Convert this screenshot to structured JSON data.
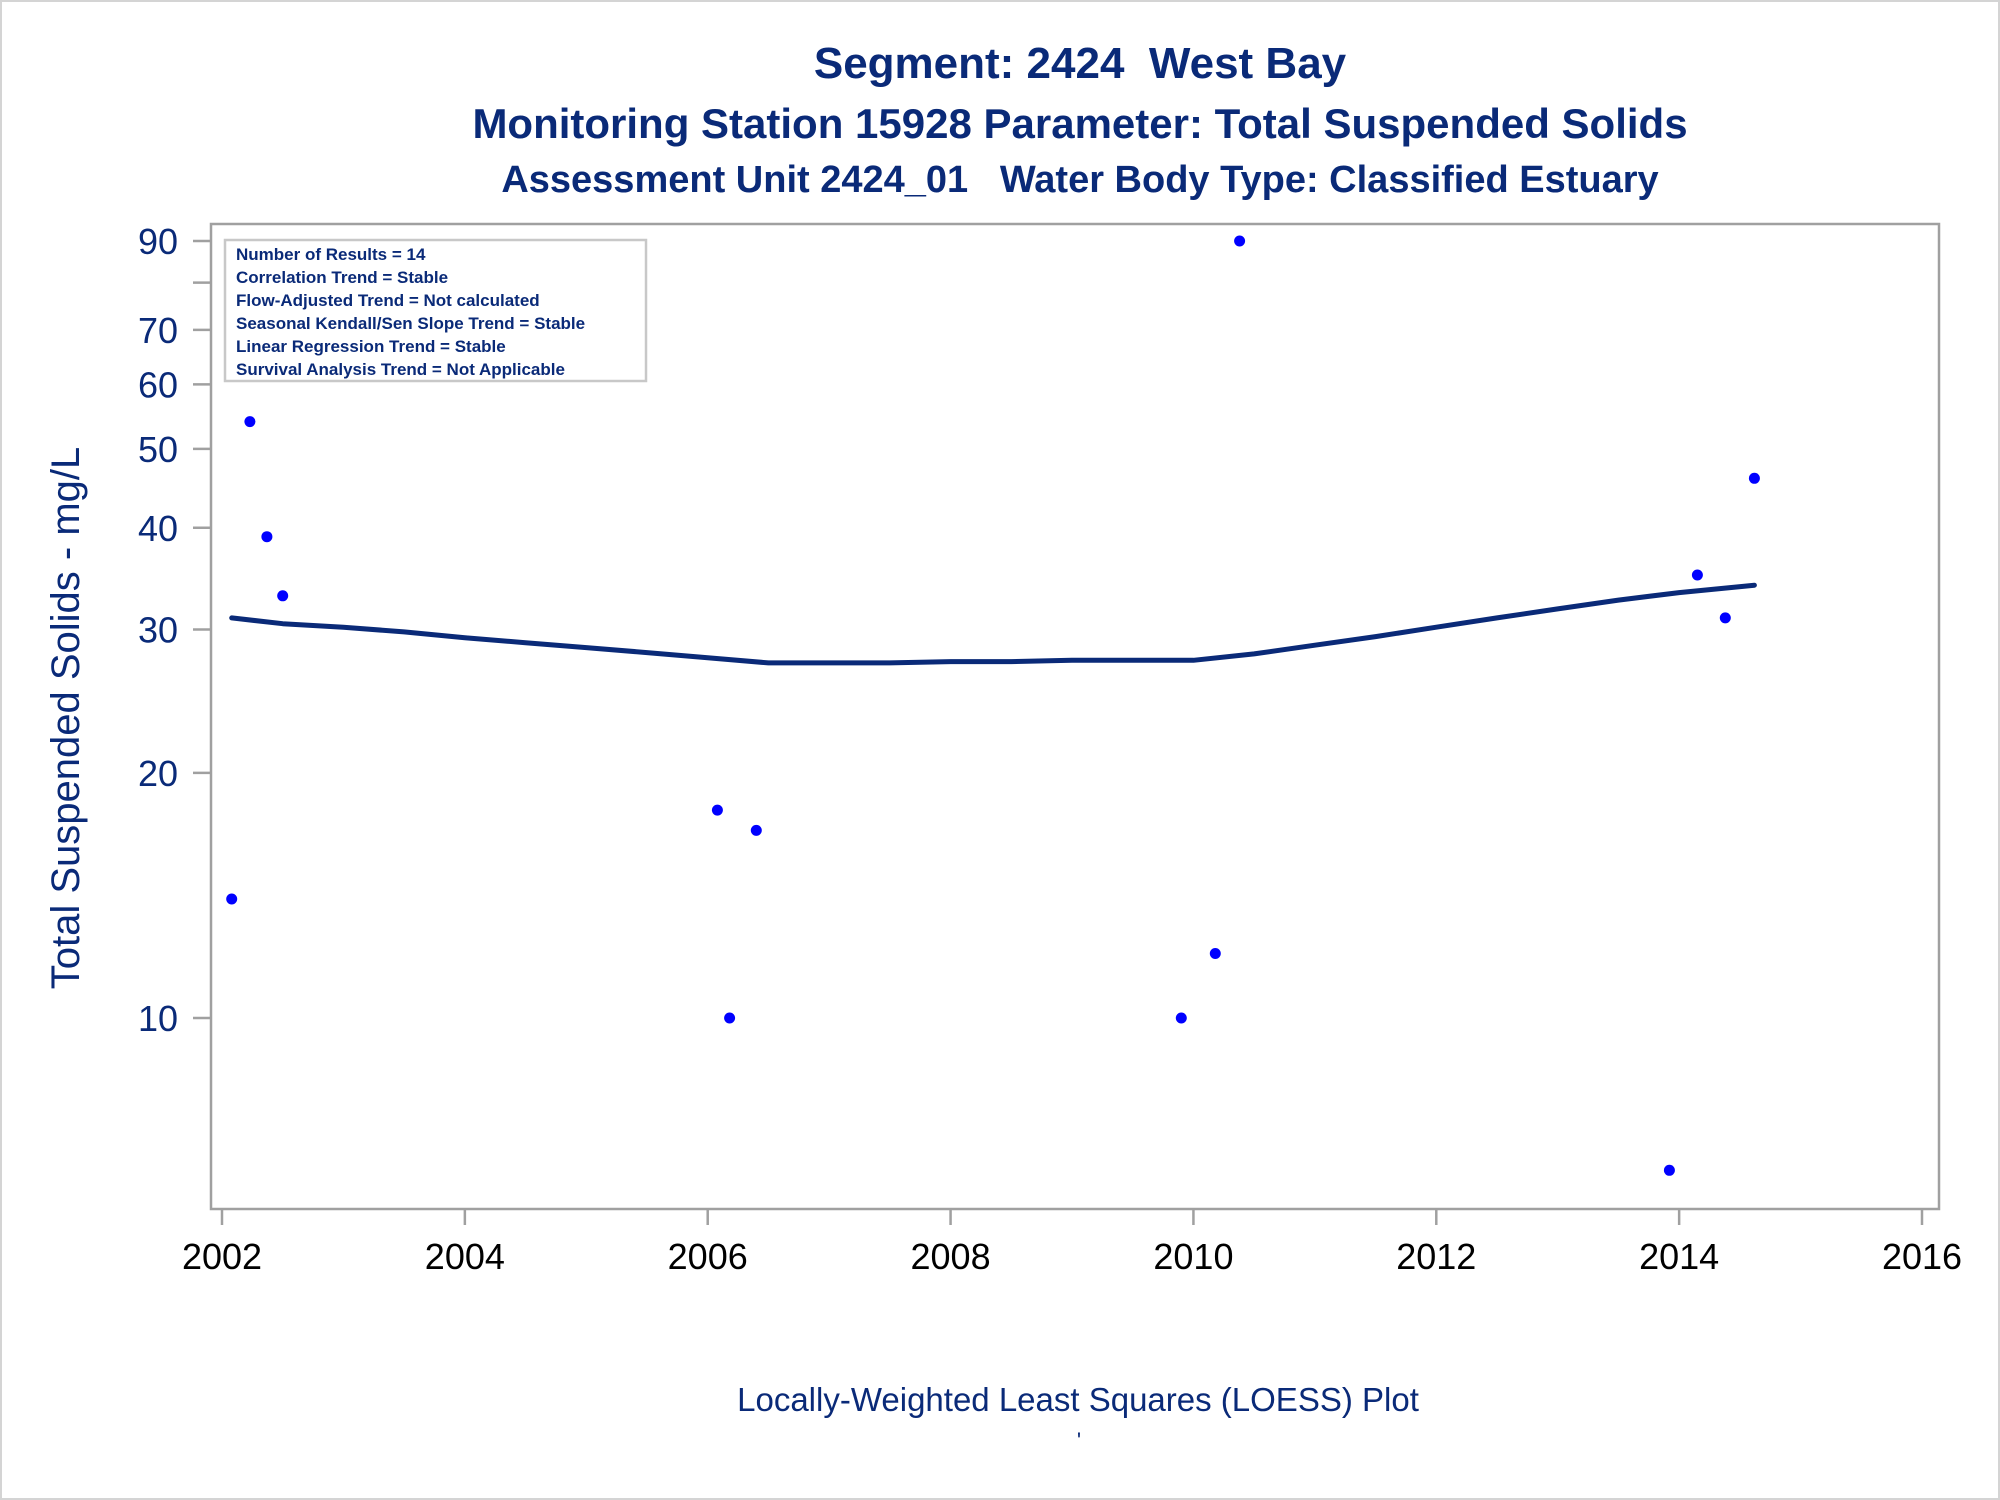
{
  "chart_data": {
    "type": "scatter",
    "title": "Segment: 2424  West Bay",
    "subtitle": "Monitoring Station 15928 Parameter: Total Suspended Solids",
    "subtitle2": "Assessment Unit 2424_01   Water Body Type: Classified Estuary",
    "xlabel": "",
    "ylabel": "Total Suspended Solids - mg/L",
    "caption": "Locally-Weighted Least Squares (LOESS) Plot",
    "caption_mark": "'",
    "y_scale": "log",
    "xlim": [
      2002,
      2016
    ],
    "ylim": [
      6.5,
      94
    ],
    "x_ticks": [
      2002,
      2004,
      2006,
      2008,
      2010,
      2012,
      2014,
      2016
    ],
    "y_ticks": [
      10,
      20,
      30,
      40,
      50,
      60,
      70,
      90
    ],
    "y_minor_ticks": [
      80
    ],
    "grid": false,
    "legend": "none",
    "inset_box": [
      "Number of Results = 14",
      "Correlation Trend = Stable",
      "Flow-Adjusted Trend = Not calculated",
      "Seasonal Kendall/Sen Slope Trend = Stable",
      "Linear Regression Trend = Stable",
      "Survival Analysis Trend = Not Applicable"
    ],
    "series": [
      {
        "kind": "scatter",
        "points": [
          [
            2002.08,
            14
          ],
          [
            2002.23,
            54
          ],
          [
            2002.37,
            39
          ],
          [
            2002.5,
            33
          ],
          [
            2006.08,
            18
          ],
          [
            2006.18,
            10
          ],
          [
            2006.4,
            17
          ],
          [
            2009.9,
            10
          ],
          [
            2010.18,
            12
          ],
          [
            2010.38,
            90
          ],
          [
            2013.92,
            6.5
          ],
          [
            2014.15,
            35
          ],
          [
            2014.38,
            31
          ],
          [
            2014.62,
            46
          ]
        ]
      },
      {
        "kind": "line",
        "points": [
          [
            2002.08,
            31
          ],
          [
            2002.5,
            30.5
          ],
          [
            2003.0,
            30.2
          ],
          [
            2003.5,
            29.8
          ],
          [
            2004.0,
            29.3
          ],
          [
            2004.5,
            28.9
          ],
          [
            2005.0,
            28.5
          ],
          [
            2005.5,
            28.1
          ],
          [
            2006.0,
            27.7
          ],
          [
            2006.5,
            27.3
          ],
          [
            2007.0,
            27.3
          ],
          [
            2007.5,
            27.3
          ],
          [
            2008.0,
            27.4
          ],
          [
            2008.5,
            27.4
          ],
          [
            2009.0,
            27.5
          ],
          [
            2009.5,
            27.5
          ],
          [
            2010.0,
            27.5
          ],
          [
            2010.5,
            28
          ],
          [
            2011.0,
            28.7
          ],
          [
            2011.5,
            29.4
          ],
          [
            2012.0,
            30.2
          ],
          [
            2012.5,
            31
          ],
          [
            2013.0,
            31.8
          ],
          [
            2013.5,
            32.6
          ],
          [
            2014.0,
            33.3
          ],
          [
            2014.62,
            34
          ]
        ]
      }
    ],
    "colors": {
      "title": "#0a2a78",
      "axis": "#a0a0a0",
      "tick_label_y": "#0a2a78",
      "tick_label_x": "#000000",
      "points": "#0000ff",
      "loess_line": "#0a2a78"
    }
  }
}
